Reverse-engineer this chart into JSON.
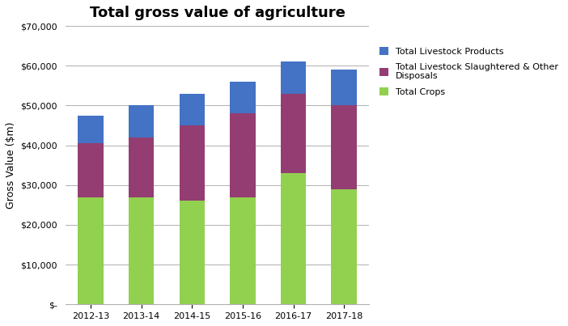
{
  "categories": [
    "2012-13",
    "2013-14",
    "2014-15",
    "2015-16",
    "2016-17",
    "2017-18"
  ],
  "total_crops": [
    27000,
    27000,
    26000,
    27000,
    33000,
    29000
  ],
  "livestock_slaughtered": [
    13500,
    15000,
    19000,
    21000,
    20000,
    21000
  ],
  "livestock_products": [
    7000,
    8000,
    8000,
    8000,
    8000,
    9000
  ],
  "colors": {
    "total_crops": "#92d050",
    "livestock_slaughtered": "#943d72",
    "livestock_products": "#4472c4"
  },
  "title": "Total gross value of agriculture",
  "ylabel": "Gross Value ($m)",
  "ytick_values": [
    0,
    10000,
    20000,
    30000,
    40000,
    50000,
    60000,
    70000
  ],
  "legend_labels": [
    "Total Livestock Products",
    "Total Livestock Slaughtered & Other\nDisposals",
    "Total Crops"
  ],
  "background_color": "#ffffff",
  "grid_color": "#b0b0b0",
  "ylim": [
    0,
    70000
  ],
  "figsize": [
    7.02,
    4.03
  ],
  "dpi": 100,
  "bar_width": 0.5,
  "title_fontsize": 13,
  "axis_label_fontsize": 9,
  "tick_fontsize": 8,
  "legend_fontsize": 8
}
